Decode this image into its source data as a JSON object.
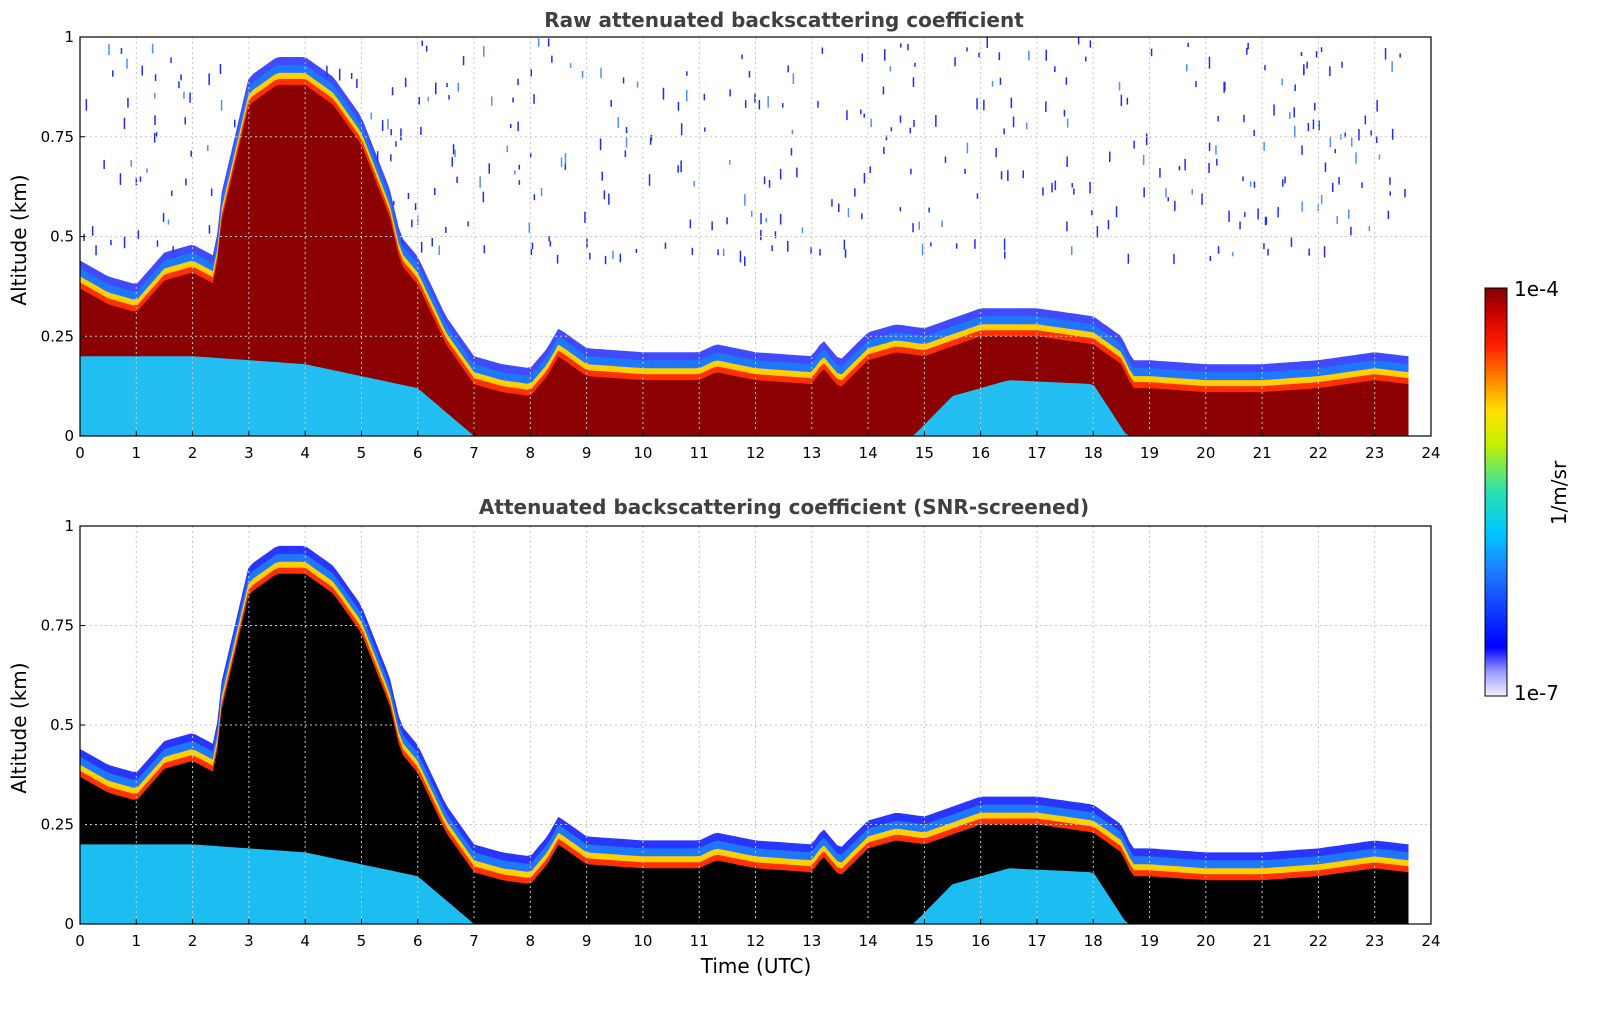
{
  "colors": {
    "background": "#ffffff",
    "title_text": "#404040",
    "grid": "#c8c8c8",
    "layer_low_blue": "#1e2bff",
    "layer_cyan": "#1ec8ff",
    "layer_max_darkred": "#8b0000",
    "screened_saturated": "#000000"
  },
  "colorbar": {
    "max_label": "1e-4",
    "min_label": "1e-7",
    "unit_label": "1/m/sr",
    "colormap": "jet, white at minimum",
    "scale": "log"
  },
  "chart_data": [
    {
      "type": "heatmap",
      "title": "Raw attenuated backscattering coefficient",
      "xlabel": "",
      "ylabel": "Altitude (km)",
      "xlim": [
        0,
        24
      ],
      "ylim": [
        0,
        1
      ],
      "xticks": [
        "0",
        "1",
        "2",
        "3",
        "4",
        "5",
        "6",
        "7",
        "8",
        "9",
        "10",
        "11",
        "12",
        "13",
        "14",
        "15",
        "16",
        "17",
        "18",
        "19",
        "20",
        "21",
        "22",
        "23",
        "24"
      ],
      "yticks": [
        "0",
        "0.25",
        "0.5",
        "0.75",
        "1"
      ],
      "grid": true,
      "screened": false,
      "layer_top_km": [
        [
          0,
          0.44
        ],
        [
          0.5,
          0.4
        ],
        [
          1,
          0.38
        ],
        [
          1.5,
          0.46
        ],
        [
          2,
          0.48
        ],
        [
          2.4,
          0.45
        ],
        [
          2.5,
          0.6
        ],
        [
          3,
          0.9
        ],
        [
          3.5,
          0.95
        ],
        [
          4,
          0.95
        ],
        [
          4.5,
          0.9
        ],
        [
          5,
          0.8
        ],
        [
          5.5,
          0.62
        ],
        [
          5.7,
          0.5
        ],
        [
          6,
          0.45
        ],
        [
          6.5,
          0.3
        ],
        [
          7,
          0.2
        ],
        [
          7.5,
          0.18
        ],
        [
          8,
          0.17
        ],
        [
          8.3,
          0.22
        ],
        [
          8.5,
          0.27
        ],
        [
          9,
          0.22
        ],
        [
          10,
          0.21
        ],
        [
          11,
          0.21
        ],
        [
          11.3,
          0.23
        ],
        [
          12,
          0.21
        ],
        [
          13,
          0.2
        ],
        [
          13.2,
          0.24
        ],
        [
          13.5,
          0.19
        ],
        [
          14,
          0.26
        ],
        [
          14.5,
          0.28
        ],
        [
          15,
          0.27
        ],
        [
          16,
          0.32
        ],
        [
          17,
          0.32
        ],
        [
          18,
          0.3
        ],
        [
          18.5,
          0.25
        ],
        [
          18.7,
          0.19
        ],
        [
          19,
          0.19
        ],
        [
          20,
          0.18
        ],
        [
          21,
          0.18
        ],
        [
          22,
          0.19
        ],
        [
          23,
          0.21
        ],
        [
          23.6,
          0.2
        ]
      ],
      "sparse_noise_top_km": 1.0,
      "data_end_utc": 23.6
    },
    {
      "type": "heatmap",
      "title": "Attenuated backscattering coefficient (SNR-screened)",
      "xlabel": "Time (UTC)",
      "ylabel": "Altitude (km)",
      "xlim": [
        0,
        24
      ],
      "ylim": [
        0,
        1
      ],
      "xticks": [
        "0",
        "1",
        "2",
        "3",
        "4",
        "5",
        "6",
        "7",
        "8",
        "9",
        "10",
        "11",
        "12",
        "13",
        "14",
        "15",
        "16",
        "17",
        "18",
        "19",
        "20",
        "21",
        "22",
        "23",
        "24"
      ],
      "yticks": [
        "0",
        "0.25",
        "0.5",
        "0.75",
        "1"
      ],
      "grid": true,
      "screened": true,
      "layer_top_km": [
        [
          0,
          0.44
        ],
        [
          0.5,
          0.4
        ],
        [
          1,
          0.38
        ],
        [
          1.5,
          0.46
        ],
        [
          2,
          0.48
        ],
        [
          2.4,
          0.45
        ],
        [
          2.5,
          0.6
        ],
        [
          3,
          0.9
        ],
        [
          3.5,
          0.95
        ],
        [
          4,
          0.95
        ],
        [
          4.5,
          0.9
        ],
        [
          5,
          0.8
        ],
        [
          5.5,
          0.62
        ],
        [
          5.7,
          0.5
        ],
        [
          6,
          0.45
        ],
        [
          6.5,
          0.3
        ],
        [
          7,
          0.2
        ],
        [
          7.5,
          0.18
        ],
        [
          8,
          0.17
        ],
        [
          8.3,
          0.22
        ],
        [
          8.5,
          0.27
        ],
        [
          9,
          0.22
        ],
        [
          10,
          0.21
        ],
        [
          11,
          0.21
        ],
        [
          11.3,
          0.23
        ],
        [
          12,
          0.21
        ],
        [
          13,
          0.2
        ],
        [
          13.2,
          0.24
        ],
        [
          13.5,
          0.19
        ],
        [
          14,
          0.26
        ],
        [
          14.5,
          0.28
        ],
        [
          15,
          0.27
        ],
        [
          16,
          0.32
        ],
        [
          17,
          0.32
        ],
        [
          18,
          0.3
        ],
        [
          18.5,
          0.25
        ],
        [
          18.7,
          0.19
        ],
        [
          19,
          0.19
        ],
        [
          20,
          0.18
        ],
        [
          21,
          0.18
        ],
        [
          22,
          0.19
        ],
        [
          23,
          0.21
        ],
        [
          23.6,
          0.2
        ]
      ],
      "data_end_utc": 23.6
    }
  ]
}
